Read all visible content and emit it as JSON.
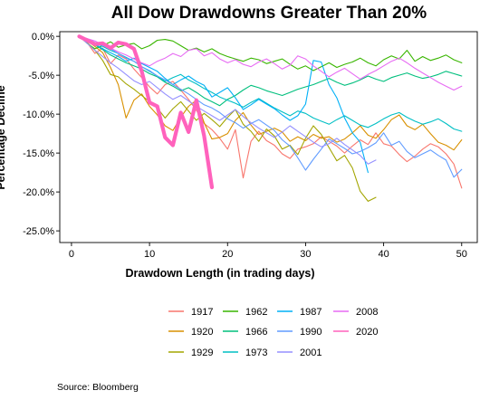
{
  "source_text": "Source:  Bloomberg",
  "chart_data": {
    "type": "line",
    "title": "All Dow Drawdowns Greater Than 20%",
    "xlabel": "Drawdown Length (in trading days)",
    "ylabel": "Percentage Decline",
    "xlim": [
      -1.5,
      52
    ],
    "ylim": [
      -26.5,
      0.6
    ],
    "x_ticks": [
      0,
      10,
      20,
      30,
      40,
      50
    ],
    "y_ticks": [
      0,
      -5,
      -10,
      -15,
      -20,
      -25
    ],
    "y_tick_labels": [
      "0.0%",
      "-5.0%",
      "-10.0%",
      "-15.0%",
      "-20.0%",
      "-25.0%"
    ],
    "grid": false,
    "legend_position": "bottom",
    "series": [
      {
        "name": "1917",
        "color": "#F8766D",
        "width": 1.1,
        "x_start": 1,
        "values": [
          0,
          -0.8,
          -2.2,
          -1.5,
          -3.5,
          -2.4,
          -2.9,
          -4.2,
          -5.3,
          -6.5,
          -7.4,
          -6.2,
          -5.8,
          -6.9,
          -8.1,
          -9.5,
          -11.2,
          -12.0,
          -13.1,
          -14.5,
          -12.0,
          -18.2,
          -13.5,
          -12.2,
          -13.4,
          -14.0,
          -15.1,
          -15.7,
          -14.5,
          -14.2,
          -13.8,
          -12.9,
          -13.5,
          -14.1,
          -15.0,
          -14.1,
          -13.3,
          -13.9,
          -12.4,
          -13.8,
          -14.1,
          -15.2,
          -16.1,
          -15.4,
          -14.5,
          -13.8,
          -14.2,
          -15.1,
          -16.4,
          -19.5
        ]
      },
      {
        "name": "1920",
        "color": "#D89000",
        "width": 1.1,
        "x_start": 1,
        "values": [
          0,
          -0.6,
          -1.3,
          -2.1,
          -4.0,
          -6.2,
          -10.5,
          -8.2,
          -7.4,
          -9.0,
          -10.1,
          -11.5,
          -12.1,
          -10.4,
          -9.0,
          -8.2,
          -11.1,
          -13.2,
          -13.0,
          -12.5,
          -10.8,
          -9.8,
          -11.4,
          -12.6,
          -12.2,
          -11.8,
          -12.3,
          -13.5,
          -12.9,
          -13.4,
          -12.6,
          -13.1,
          -12.9,
          -13.6,
          -13.2,
          -12.4,
          -11.5,
          -12.7,
          -13.1,
          -12.0,
          -10.7,
          -10.1,
          -11.5,
          -12.0,
          -11.3,
          -12.5,
          -13.6,
          -14.0,
          -14.6,
          -13.3
        ]
      },
      {
        "name": "1929",
        "color": "#A3A500",
        "width": 1.1,
        "x_start": 1,
        "values": [
          0,
          -0.8,
          -1.8,
          -3.1,
          -4.9,
          -5.2,
          -6.1,
          -6.8,
          -7.6,
          -8.4,
          -9.2,
          -10.5,
          -9.3,
          -8.4,
          -9.6,
          -10.8,
          -9.9,
          -10.7,
          -11.6,
          -10.4,
          -9.4,
          -11.3,
          -12.2,
          -13.5,
          -11.9,
          -12.8,
          -14.5,
          -14.0,
          -15.2,
          -13.1,
          -11.5,
          -12.6,
          -14.3,
          -16.0,
          -15.3,
          -16.9,
          -19.9,
          -21.2,
          -20.7
        ]
      },
      {
        "name": "1962",
        "color": "#39B600",
        "width": 1.1,
        "x_start": 1,
        "values": [
          0,
          -0.9,
          -1.6,
          -1.2,
          -0.7,
          -1.4,
          -1.1,
          -0.9,
          -1.6,
          -1.2,
          -0.5,
          -0.4,
          -0.6,
          -1.2,
          -1.8,
          -1.5,
          -2.0,
          -1.6,
          -2.2,
          -2.6,
          -2.9,
          -3.2,
          -2.8,
          -3.0,
          -3.5,
          -3.2,
          -2.9,
          -3.6,
          -4.2,
          -3.8,
          -4.4,
          -3.9,
          -3.4,
          -4.0,
          -3.6,
          -3.3,
          -2.8,
          -3.4,
          -3.8,
          -3.0,
          -2.5,
          -2.9,
          -1.8,
          -3.2,
          -2.6,
          -3.1,
          -2.8,
          -2.4,
          -3.0,
          -3.4
        ]
      },
      {
        "name": "1966",
        "color": "#00BF7D",
        "width": 1.1,
        "x_start": 1,
        "values": [
          0,
          -0.6,
          -1.1,
          -1.7,
          -2.4,
          -2.9,
          -3.4,
          -3.8,
          -4.2,
          -4.8,
          -5.2,
          -5.9,
          -6.4,
          -7.0,
          -6.6,
          -7.2,
          -7.9,
          -8.4,
          -8.9,
          -8.1,
          -7.6,
          -6.9,
          -6.3,
          -6.6,
          -7.0,
          -7.3,
          -7.6,
          -7.2,
          -6.8,
          -6.5,
          -6.2,
          -5.8,
          -5.4,
          -5.9,
          -6.3,
          -6.0,
          -5.6,
          -5.1,
          -5.5,
          -5.8,
          -5.3,
          -5.0,
          -4.7,
          -5.1,
          -5.4,
          -5.2,
          -4.9,
          -4.5,
          -4.8,
          -5.1
        ]
      },
      {
        "name": "1973",
        "color": "#00BFC4",
        "width": 1.1,
        "x_start": 1,
        "values": [
          0,
          -0.4,
          -0.9,
          -1.3,
          -1.8,
          -2.2,
          -2.7,
          -3.2,
          -3.9,
          -4.5,
          -5.1,
          -5.8,
          -5.3,
          -4.9,
          -5.6,
          -6.1,
          -6.7,
          -7.2,
          -7.8,
          -8.2,
          -8.6,
          -9.1,
          -8.5,
          -8.0,
          -8.6,
          -9.2,
          -9.7,
          -10.2,
          -9.6,
          -9.9,
          -10.5,
          -10.9,
          -11.3,
          -10.7,
          -10.2,
          -10.8,
          -11.4,
          -11.7,
          -11.2,
          -10.6,
          -10.1,
          -9.8,
          -10.4,
          -10.9,
          -11.3,
          -11.0,
          -10.6,
          -11.2,
          -11.9,
          -12.2
        ]
      },
      {
        "name": "1987",
        "color": "#00B0F6",
        "width": 1.1,
        "x_start": 1,
        "values": [
          0,
          -0.5,
          -1.0,
          -1.6,
          -2.1,
          -2.6,
          -3.2,
          -2.8,
          -3.5,
          -4.0,
          -4.5,
          -5.4,
          -6.2,
          -5.6,
          -5.1,
          -5.8,
          -6.3,
          -7.8,
          -7.2,
          -6.6,
          -7.9,
          -9.4,
          -8.8,
          -8.1,
          -8.7,
          -9.3,
          -10.1,
          -10.8,
          -10.2,
          -8.7,
          -3.1,
          -3.3,
          -6.2,
          -7.9,
          -10.5,
          -12.4,
          -13.6,
          -17.5
        ]
      },
      {
        "name": "1990",
        "color": "#619CFF",
        "width": 1.1,
        "x_start": 1,
        "values": [
          0,
          -0.3,
          -0.8,
          -1.2,
          -1.6,
          -2.2,
          -2.8,
          -3.2,
          -3.9,
          -4.4,
          -5.1,
          -5.6,
          -6.2,
          -6.8,
          -7.4,
          -8.1,
          -8.8,
          -9.2,
          -9.8,
          -10.6,
          -11.1,
          -11.8,
          -11.2,
          -10.7,
          -11.4,
          -12.1,
          -13.3,
          -14.1,
          -15.6,
          -17.2,
          -15.8,
          -14.5,
          -13.2,
          -13.8,
          -14.4,
          -15.1,
          -14.8,
          -14.3,
          -13.7,
          -12.4,
          -14.0,
          -13.5,
          -14.8,
          -15.6,
          -15.1,
          -14.6,
          -15.3,
          -15.9,
          -18.1,
          -17.1
        ]
      },
      {
        "name": "2001",
        "color": "#9590FF",
        "width": 1.1,
        "x_start": 1,
        "values": [
          0,
          -0.9,
          -1.8,
          -2.6,
          -3.4,
          -4.1,
          -4.9,
          -5.7,
          -6.2,
          -5.8,
          -6.6,
          -7.4,
          -8.1,
          -7.6,
          -8.3,
          -9.0,
          -9.6,
          -10.2,
          -10.8,
          -10.1,
          -9.4,
          -10.3,
          -11.1,
          -11.8,
          -12.4,
          -13.0,
          -12.3,
          -11.5,
          -12.2,
          -12.9,
          -13.6,
          -14.2,
          -13.8,
          -13.1,
          -13.9,
          -14.6,
          -15.3,
          -16.4,
          -15.9
        ]
      },
      {
        "name": "2008",
        "color": "#E76BF3",
        "width": 1.1,
        "x_start": 1,
        "values": [
          0,
          -0.3,
          -0.6,
          -1.1,
          -1.5,
          -2.0,
          -2.4,
          -2.9,
          -3.4,
          -3.8,
          -3.2,
          -2.8,
          -2.2,
          -2.6,
          -1.8,
          -1.6,
          -2.5,
          -2.1,
          -2.9,
          -3.4,
          -3.0,
          -3.6,
          -3.9,
          -3.3,
          -2.9,
          -3.5,
          -4.2,
          -3.7,
          -2.5,
          -2.9,
          -3.8,
          -4.5,
          -5.2,
          -4.6,
          -4.1,
          -4.8,
          -5.5,
          -4.9,
          -4.4,
          -3.8,
          -3.2,
          -2.8,
          -3.4,
          -4.1,
          -4.7,
          -5.3,
          -5.9,
          -6.4,
          -6.9,
          -6.4
        ]
      },
      {
        "name": "2020",
        "color": "#FF62BC",
        "width": 4.2,
        "x_start": 1,
        "values": [
          0,
          -0.5,
          -1.0,
          -0.9,
          -1.5,
          -0.8,
          -1.0,
          -1.6,
          -4.5,
          -8.5,
          -9.0,
          -13.0,
          -14.0,
          -9.8,
          -12.3,
          -8.2,
          -12.8,
          -19.4
        ]
      }
    ]
  }
}
